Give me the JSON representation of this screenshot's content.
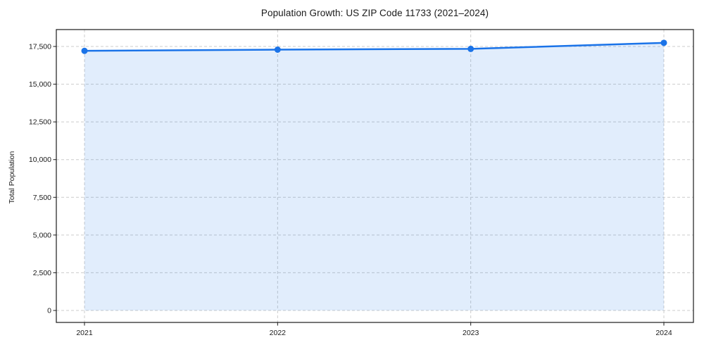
{
  "chart": {
    "title": "Population Growth: US ZIP Code 11733 (2021–2024)",
    "ylabel": "Total Population"
  },
  "chart_data": {
    "type": "area",
    "title": "Population Growth: US ZIP Code 11733 (2021–2024)",
    "xlabel": "",
    "ylabel": "Total Population",
    "x": [
      "2021",
      "2022",
      "2023",
      "2024"
    ],
    "series": [
      {
        "name": "Total Population",
        "values": [
          17210,
          17290,
          17340,
          17740
        ]
      }
    ],
    "ylim": [
      0,
      17500
    ],
    "yticks": [
      0,
      2500,
      5000,
      7500,
      10000,
      12500,
      15000,
      17500
    ],
    "ytick_labels": [
      "0",
      "2,500",
      "5,000",
      "7,500",
      "10,000",
      "12,500",
      "15,000",
      "17,500"
    ],
    "grid": true,
    "grid_style": "dashed",
    "legend": "none",
    "colors": {
      "line": "#1a73e8",
      "marker": "#1a73e8",
      "fill": "rgba(26,115,232,0.13)",
      "gridline": "#cccccc",
      "axis": "#1a1a1a",
      "background": "#ffffff"
    }
  }
}
